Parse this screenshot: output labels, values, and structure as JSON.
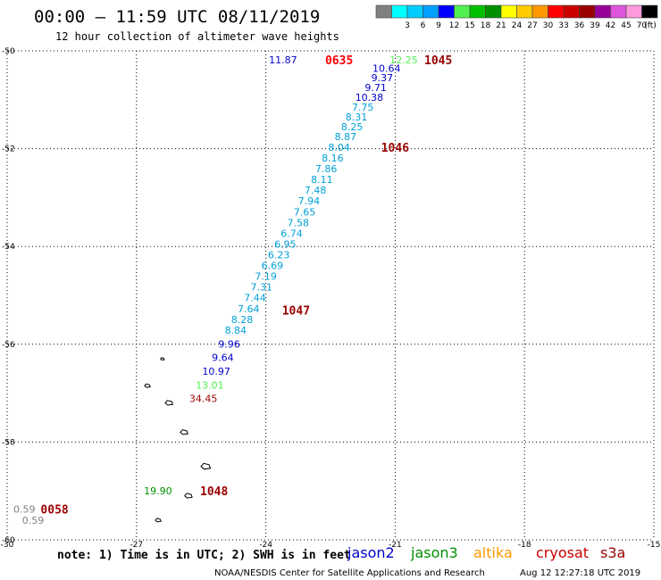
{
  "header": {
    "title": "00:00 – 11:59 UTC 08/11/2019",
    "subtitle": "12 hour collection of altimeter wave heights"
  },
  "legend": {
    "unit": "(ft)",
    "bins": [
      {
        "label": "",
        "color": "#808080"
      },
      {
        "label": "3",
        "color": "#00ffff"
      },
      {
        "label": "6",
        "color": "#00ccff"
      },
      {
        "label": "9",
        "color": "#00a0ff"
      },
      {
        "label": "12",
        "color": "#0000ff"
      },
      {
        "label": "15",
        "color": "#50f050"
      },
      {
        "label": "18",
        "color": "#00c000"
      },
      {
        "label": "21",
        "color": "#009000"
      },
      {
        "label": "24",
        "color": "#ffff00"
      },
      {
        "label": "27",
        "color": "#ffcc00"
      },
      {
        "label": "30",
        "color": "#ff9900"
      },
      {
        "label": "33",
        "color": "#ff0000"
      },
      {
        "label": "36",
        "color": "#cc0000"
      },
      {
        "label": "39",
        "color": "#990000"
      },
      {
        "label": "42",
        "color": "#990099"
      },
      {
        "label": "45",
        "color": "#dd55dd"
      },
      {
        "label": "70",
        "color": "#ff99dd"
      },
      {
        "label": "",
        "color": "#000000"
      }
    ]
  },
  "map": {
    "lon_ticks": [
      -30,
      -27,
      -24,
      -21,
      -18,
      -15
    ],
    "lat_ticks": [
      -50,
      -52,
      -54,
      -56,
      -58,
      -60
    ],
    "lon_range": [
      -30,
      -15
    ],
    "lat_range": [
      -50,
      -60
    ],
    "grid": "dotted"
  },
  "observations": [
    {
      "text": "11.87",
      "lon": -23.6,
      "lat": -50.18,
      "color": "#0000cc"
    },
    {
      "text": "12.25",
      "lon": -20.8,
      "lat": -50.18,
      "color": "#50f050"
    },
    {
      "text": "10.64",
      "lon": -21.2,
      "lat": -50.36,
      "color": "#0000cc"
    },
    {
      "text": "9.37",
      "lon": -21.3,
      "lat": -50.55,
      "color": "#0000cc"
    },
    {
      "text": "9.71",
      "lon": -21.45,
      "lat": -50.75,
      "color": "#0000cc"
    },
    {
      "text": "10.38",
      "lon": -21.6,
      "lat": -50.95,
      "color": "#0000cc"
    },
    {
      "text": "7.75",
      "lon": -21.75,
      "lat": -51.15,
      "color": "#00a0d8"
    },
    {
      "text": "8.31",
      "lon": -21.9,
      "lat": -51.35,
      "color": "#00a0d8"
    },
    {
      "text": "8.25",
      "lon": -22.0,
      "lat": -51.55,
      "color": "#00a0d8"
    },
    {
      "text": "8.87",
      "lon": -22.15,
      "lat": -51.75,
      "color": "#00a0d8"
    },
    {
      "text": "8.04",
      "lon": -22.3,
      "lat": -51.97,
      "color": "#00a0d8"
    },
    {
      "text": "8.16",
      "lon": -22.45,
      "lat": -52.19,
      "color": "#00a0d8"
    },
    {
      "text": "7.86",
      "lon": -22.6,
      "lat": -52.41,
      "color": "#00a0d8"
    },
    {
      "text": "8.11",
      "lon": -22.7,
      "lat": -52.63,
      "color": "#00a0d8"
    },
    {
      "text": "7.48",
      "lon": -22.85,
      "lat": -52.85,
      "color": "#00a0d8"
    },
    {
      "text": "7.94",
      "lon": -23.0,
      "lat": -53.07,
      "color": "#00a0d8"
    },
    {
      "text": "7.65",
      "lon": -23.1,
      "lat": -53.29,
      "color": "#00a0d8"
    },
    {
      "text": "7.58",
      "lon": -23.25,
      "lat": -53.51,
      "color": "#00a0d8"
    },
    {
      "text": "6.74",
      "lon": -23.4,
      "lat": -53.73,
      "color": "#00a0d8"
    },
    {
      "text": "6.95",
      "lon": -23.55,
      "lat": -53.95,
      "color": "#00a0d8"
    },
    {
      "text": "6.23",
      "lon": -23.7,
      "lat": -54.17,
      "color": "#00a0d8"
    },
    {
      "text": "6.69",
      "lon": -23.85,
      "lat": -54.39,
      "color": "#00a0d8"
    },
    {
      "text": "7.19",
      "lon": -24.0,
      "lat": -54.61,
      "color": "#00a0d8"
    },
    {
      "text": "7.31",
      "lon": -24.1,
      "lat": -54.83,
      "color": "#00a0d8"
    },
    {
      "text": "7.44",
      "lon": -24.25,
      "lat": -55.05,
      "color": "#00a0d8"
    },
    {
      "text": "7.64",
      "lon": -24.4,
      "lat": -55.27,
      "color": "#00a0d8"
    },
    {
      "text": "8.28",
      "lon": -24.55,
      "lat": -55.49,
      "color": "#00a0d8"
    },
    {
      "text": "8.84",
      "lon": -24.7,
      "lat": -55.71,
      "color": "#00a0d8"
    },
    {
      "text": "9.96",
      "lon": -24.85,
      "lat": -55.99,
      "color": "#0000cc"
    },
    {
      "text": "9.64",
      "lon": -25.0,
      "lat": -56.27,
      "color": "#0000cc"
    },
    {
      "text": "10.97",
      "lon": -25.15,
      "lat": -56.55,
      "color": "#0000cc"
    },
    {
      "text": "13.01",
      "lon": -25.3,
      "lat": -56.83,
      "color": "#50f050"
    },
    {
      "text": "34.45",
      "lon": -25.45,
      "lat": -57.11,
      "color": "#990000"
    },
    {
      "text": "19.90",
      "lon": -26.5,
      "lat": -59.0,
      "color": "#009000"
    },
    {
      "text": "0.59",
      "lon": -29.6,
      "lat": -59.37,
      "color": "#808080"
    },
    {
      "text": "0.59",
      "lon": -29.4,
      "lat": -59.6,
      "color": "#808080"
    }
  ],
  "pass_times": [
    {
      "text": "0635",
      "lon": -22.3,
      "lat": -50.18,
      "color": "#ff0000"
    },
    {
      "text": "1045",
      "lon": -20.0,
      "lat": -50.18,
      "color": "#990000"
    },
    {
      "text": "1046",
      "lon": -21.0,
      "lat": -51.97,
      "color": "#990000"
    },
    {
      "text": "1047",
      "lon": -23.3,
      "lat": -55.3,
      "color": "#990000"
    },
    {
      "text": "1048",
      "lon": -25.2,
      "lat": -59.0,
      "color": "#990000"
    },
    {
      "text": "0058",
      "lon": -28.9,
      "lat": -59.37,
      "color": "#990000"
    }
  ],
  "islands": [
    {
      "lon": -26.4,
      "lat": -56.3,
      "size": 2
    },
    {
      "lon": -26.75,
      "lat": -56.85,
      "size": 3
    },
    {
      "lon": -26.25,
      "lat": -57.2,
      "size": 4
    },
    {
      "lon": -25.9,
      "lat": -57.8,
      "size": 4
    },
    {
      "lon": -25.4,
      "lat": -58.5,
      "size": 5
    },
    {
      "lon": -25.8,
      "lat": -59.1,
      "size": 4
    },
    {
      "lon": -26.5,
      "lat": -59.6,
      "size": 3
    }
  ],
  "footer": {
    "note": "note: 1) Time is in UTC; 2) SWH is in feet",
    "satellites": [
      {
        "name": "jason2",
        "color": "#0000cc"
      },
      {
        "name": "jason3",
        "color": "#009000"
      },
      {
        "name": "altika",
        "color": "#ff9900"
      },
      {
        "name": "cryosat",
        "color": "#cc0000"
      },
      {
        "name": "s3a",
        "color": "#990000"
      }
    ],
    "credit": "NOAA/NESDIS Center for Satellite Applications and Research",
    "timestamp": "Aug 12 12:27:18 UTC 2019"
  }
}
